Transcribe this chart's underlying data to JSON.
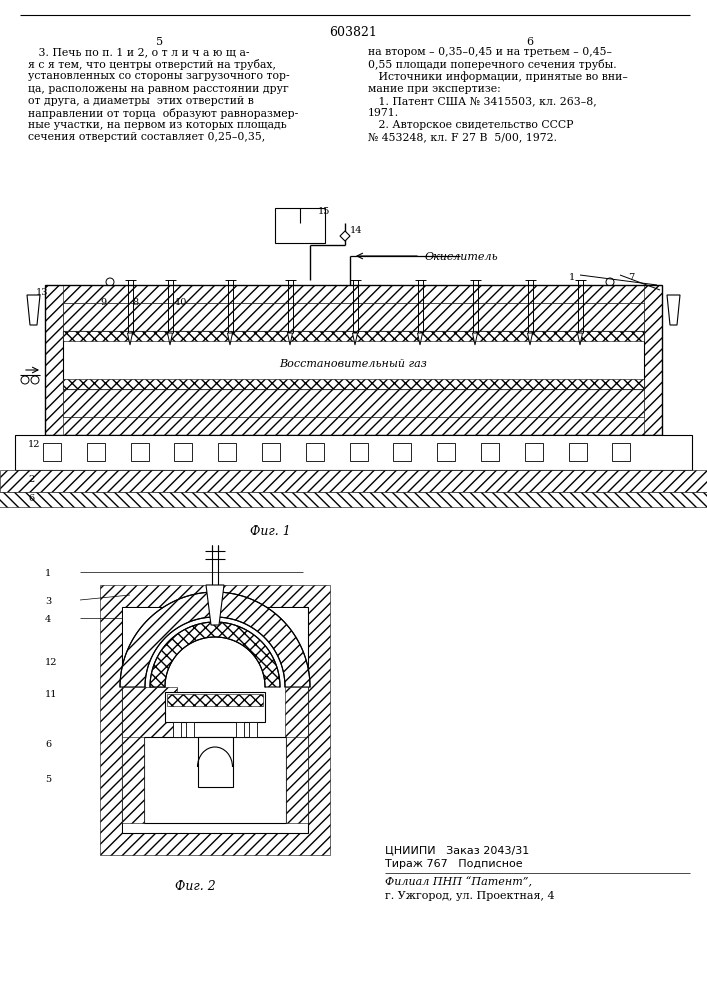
{
  "page_number": "603821",
  "col_left_num": "5",
  "col_right_num": "6",
  "text_left": [
    "   3. Печь по п. 1 и 2, о т л и ч а ю щ а-",
    "я с я тем, что центры отверстий на трубах,",
    "установленных со стороны загрузочного тор-",
    "ца, расположены на равном расстоянии друг",
    "от друга, а диаметры  этих отверстий в",
    "направлении от торца  образуют равноразмер-",
    "ные участки, на первом из которых площадь",
    "сечения отверстий составляет 0,25–0,35,"
  ],
  "text_right": [
    "на втором – 0,35–0,45 и на третьем – 0,45–",
    "0,55 площади поперечного сечения трубы.",
    "   Источники информации, принятые во вни–",
    "мание при экспертизе:",
    "   1. Патент США № 3415503, кл. 263–8,",
    "1971.",
    "   2. Авторское свидетельство СССР",
    "№ 453248, кл. F 27 B  5/00, 1972."
  ],
  "fig1_label": "Фиг. 1",
  "fig2_label": "Фиг. 2",
  "footer_line1": "ЦНИИПИ   Заказ 2043/31",
  "footer_line2": "Тираж 767   Подписное",
  "footer_line3": "Филиал ПНП “Патент”,",
  "footer_line4": "г. Ужгород, ул. Проектная, 4",
  "bg_color": "#ffffff"
}
